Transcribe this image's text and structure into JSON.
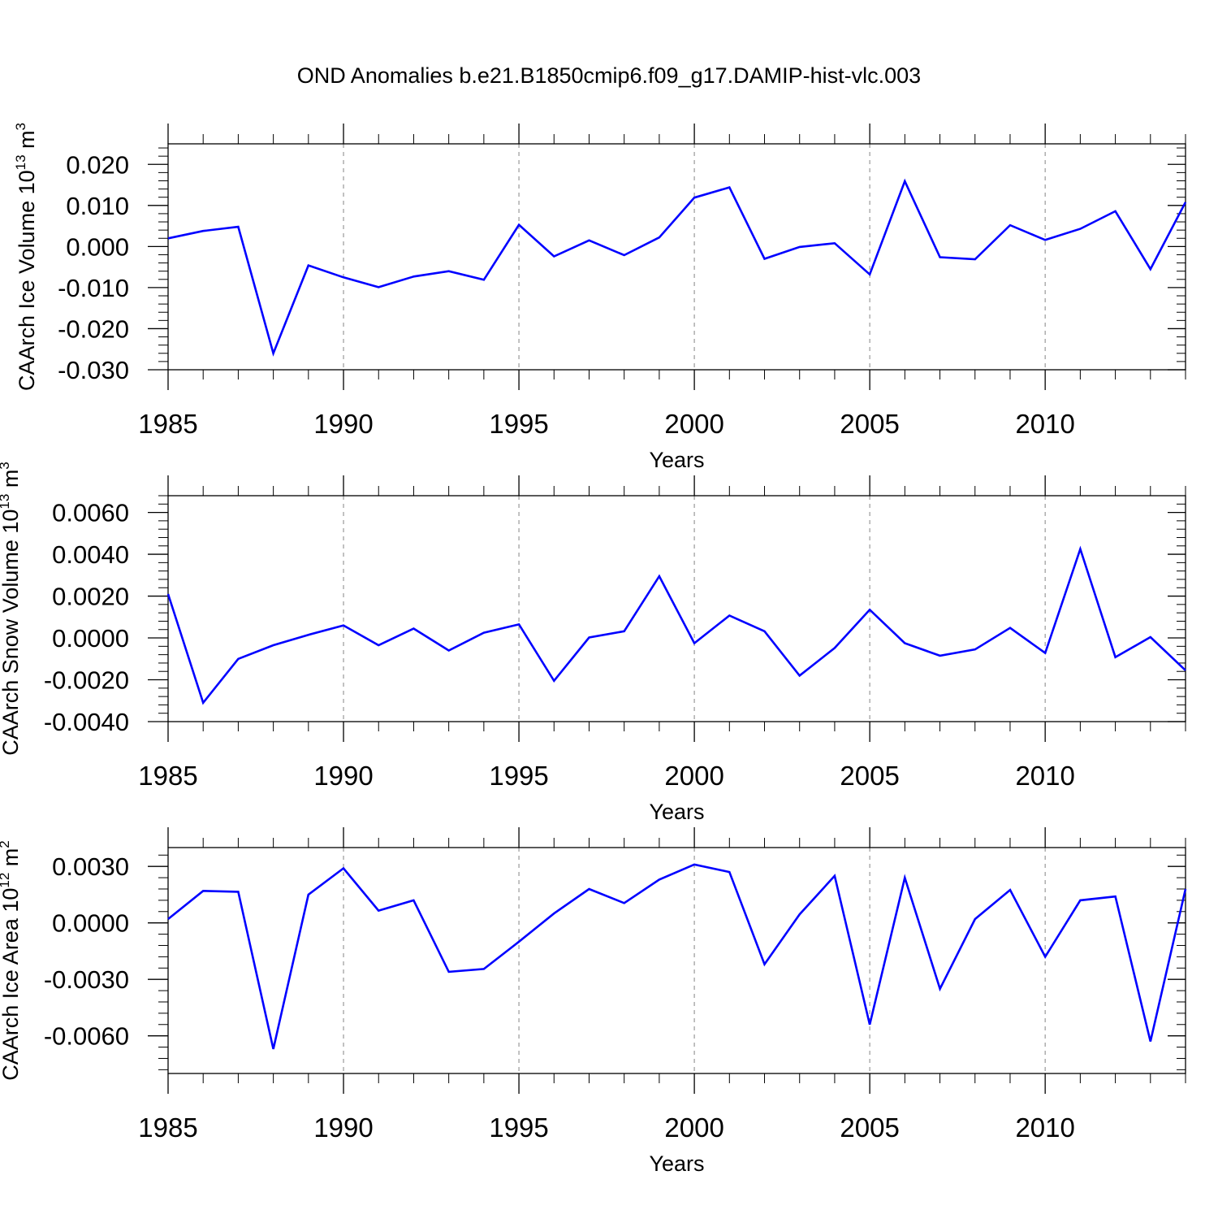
{
  "title": "OND Anomalies b.e21.B1850cmip6.f09_g17.DAMIP-hist-vlc.003",
  "line_color": "#0000ff",
  "chart_data": [
    {
      "type": "line",
      "ylabel_main": "CAArch Ice Volume 10",
      "ylabel_sup": "13",
      "ylabel_tail": " m",
      "ylabel_unit_sup": "3",
      "xlabel": "Years",
      "xlim": [
        1985,
        2014
      ],
      "ylim": [
        -0.03,
        0.025
      ],
      "xticks": [
        1985,
        1990,
        1995,
        2000,
        2005,
        2010
      ],
      "xtick_labels": [
        "1985",
        "1990",
        "1995",
        "2000",
        "2005",
        "2010"
      ],
      "yticks": [
        -0.03,
        -0.02,
        -0.01,
        0.0,
        0.01,
        0.02
      ],
      "ytick_labels": [
        "-0.030",
        "-0.020",
        "-0.010",
        "0.000",
        "0.010",
        "0.020"
      ],
      "grid": "x-dashed",
      "x": [
        1985,
        1986,
        1987,
        1988,
        1989,
        1990,
        1991,
        1992,
        1993,
        1994,
        1995,
        1996,
        1997,
        1998,
        1999,
        2000,
        2001,
        2002,
        2003,
        2004,
        2005,
        2006,
        2007,
        2008,
        2009,
        2010,
        2011,
        2012,
        2013,
        2014
      ],
      "y": [
        0.002,
        0.0038,
        0.0048,
        -0.026,
        -0.0046,
        -0.0075,
        -0.0099,
        -0.0073,
        -0.006,
        -0.0081,
        0.0053,
        -0.0024,
        0.0015,
        -0.0021,
        0.0022,
        0.0119,
        0.0144,
        -0.003,
        -0.0001,
        0.0008,
        -0.0068,
        0.0159,
        -0.0026,
        -0.0031,
        0.0052,
        0.0016,
        0.0043,
        0.0086,
        -0.0055,
        0.0108
      ]
    },
    {
      "type": "line",
      "ylabel_main": "CAArch Snow Volume 10",
      "ylabel_sup": "13",
      "ylabel_tail": " m",
      "ylabel_unit_sup": "3",
      "xlabel": "Years",
      "xlim": [
        1985,
        2014
      ],
      "ylim": [
        -0.004,
        0.0068
      ],
      "xticks": [
        1985,
        1990,
        1995,
        2000,
        2005,
        2010
      ],
      "xtick_labels": [
        "1985",
        "1990",
        "1995",
        "2000",
        "2005",
        "2010"
      ],
      "yticks": [
        -0.004,
        -0.002,
        0.0,
        0.002,
        0.004,
        0.006
      ],
      "ytick_labels": [
        "-0.0040",
        "-0.0020",
        "0.0000",
        "0.0020",
        "0.0040",
        "0.0060"
      ],
      "grid": "x-dashed",
      "x": [
        1985,
        1986,
        1987,
        1988,
        1989,
        1990,
        1991,
        1992,
        1993,
        1994,
        1995,
        1996,
        1997,
        1998,
        1999,
        2000,
        2001,
        2002,
        2003,
        2004,
        2005,
        2006,
        2007,
        2008,
        2009,
        2010,
        2011,
        2012,
        2013,
        2014
      ],
      "y": [
        0.0021,
        -0.0031,
        -0.001,
        -0.00035,
        0.00015,
        0.0006,
        -0.00035,
        0.00045,
        -0.0006,
        0.00025,
        0.00065,
        -0.00205,
        2e-05,
        0.00032,
        0.00295,
        -0.00025,
        0.00107,
        0.00032,
        -0.0018,
        -0.00048,
        0.00135,
        -0.00025,
        -0.00085,
        -0.00055,
        0.00048,
        -0.00072,
        0.00425,
        -0.00092,
        4e-05,
        -0.00155
      ]
    },
    {
      "type": "line",
      "ylabel_main": "CAArch Ice Area 10",
      "ylabel_sup": "12",
      "ylabel_tail": " m",
      "ylabel_unit_sup": "2",
      "xlabel": "Years",
      "xlim": [
        1985,
        2014
      ],
      "ylim": [
        -0.008,
        0.004
      ],
      "xticks": [
        1985,
        1990,
        1995,
        2000,
        2005,
        2010
      ],
      "xtick_labels": [
        "1985",
        "1990",
        "1995",
        "2000",
        "2005",
        "2010"
      ],
      "yticks": [
        -0.006,
        -0.003,
        0.0,
        0.003
      ],
      "ytick_labels": [
        "-0.0060",
        "-0.0030",
        "0.0000",
        "0.0030"
      ],
      "grid": "x-dashed",
      "x": [
        1985,
        1986,
        1987,
        1988,
        1989,
        1990,
        1991,
        1992,
        1993,
        1994,
        1995,
        1996,
        1997,
        1998,
        1999,
        2000,
        2001,
        2002,
        2003,
        2004,
        2005,
        2006,
        2007,
        2008,
        2009,
        2010,
        2011,
        2012,
        2013,
        2014
      ],
      "y": [
        0.0002,
        0.0017,
        0.00165,
        -0.0067,
        0.0015,
        0.0029,
        0.00065,
        0.0012,
        -0.0026,
        -0.00245,
        -0.001,
        0.0005,
        0.0018,
        0.00105,
        0.0023,
        0.0031,
        0.0027,
        -0.0022,
        0.00045,
        0.0025,
        -0.0054,
        0.0024,
        -0.0035,
        0.0002,
        0.00175,
        -0.0018,
        0.0012,
        0.0014,
        -0.0063,
        0.0018
      ]
    }
  ]
}
